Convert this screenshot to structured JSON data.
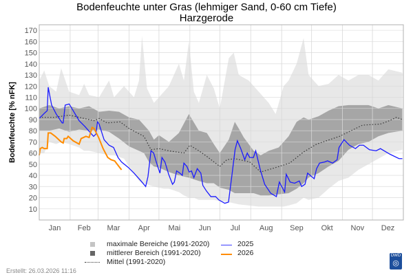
{
  "chart_data": {
    "type": "area",
    "title": "Bodenfeuchte unter Gras (lehmiger Sand, 0-60 cm Tiefe)",
    "subtitle": "Harzgerode",
    "ylabel": "Bodenfeuchte [% nFK]",
    "xlabel": "",
    "ylim": [
      0,
      175
    ],
    "xlim_days": [
      0,
      365
    ],
    "yticks": [
      10,
      20,
      30,
      40,
      50,
      60,
      70,
      80,
      90,
      100,
      110,
      120,
      130,
      140,
      150,
      160,
      170
    ],
    "months": [
      "Jan",
      "Feb",
      "Mar",
      "Apr",
      "Mai",
      "Jun",
      "Jul",
      "Aug",
      "Sep",
      "Okt",
      "Nov",
      "Dez"
    ],
    "month_start_days": [
      0,
      31,
      59,
      90,
      120,
      151,
      181,
      212,
      243,
      273,
      304,
      334
    ],
    "grid": true,
    "colors": {
      "max_band": "#e8e8e8",
      "mid_band": "#a6a6a6",
      "mean": "#333333",
      "y2025": "#1a1aff",
      "y2026": "#ff8c00"
    },
    "max_band": {
      "name": "maximale Bereiche (1991-2020)",
      "day": [
        0,
        5,
        10,
        17,
        22,
        30,
        40,
        45,
        50,
        60,
        70,
        75,
        85,
        90,
        95,
        100,
        103,
        108,
        115,
        125,
        130,
        140,
        145,
        150,
        155,
        160,
        168,
        175,
        181,
        190,
        195,
        200,
        210,
        220,
        230,
        237,
        245,
        250,
        258,
        265,
        270,
        280,
        290,
        300,
        310,
        320,
        330,
        340,
        350,
        364
      ],
      "low": [
        60,
        60,
        70,
        68,
        70,
        68,
        65,
        62,
        62,
        60,
        58,
        58,
        55,
        48,
        42,
        35,
        33,
        32,
        30,
        28,
        28,
        25,
        22,
        20,
        20,
        18,
        18,
        18,
        17,
        16,
        15,
        14,
        13,
        12,
        12,
        12,
        12,
        13,
        15,
        20,
        18,
        20,
        28,
        35,
        38,
        45,
        50,
        55,
        60,
        63
      ],
      "high": [
        125,
        134,
        120,
        115,
        136,
        115,
        112,
        122,
        112,
        110,
        125,
        110,
        120,
        115,
        110,
        125,
        165,
        118,
        105,
        115,
        120,
        140,
        125,
        160,
        115,
        105,
        130,
        118,
        100,
        145,
        150,
        130,
        125,
        115,
        105,
        95,
        120,
        125,
        140,
        163,
        130,
        120,
        122,
        130,
        125,
        130,
        130,
        125,
        135,
        132
      ]
    },
    "mid_band": {
      "name": "mittlerer Bereich (1991-2020)",
      "day": [
        0,
        10,
        20,
        30,
        40,
        50,
        60,
        70,
        80,
        90,
        100,
        105,
        110,
        115,
        120,
        130,
        140,
        150,
        160,
        168,
        175,
        181,
        190,
        196,
        200,
        205,
        215,
        222,
        230,
        240,
        250,
        258,
        265,
        270,
        280,
        290,
        300,
        310,
        320,
        330,
        340,
        350,
        364
      ],
      "low": [
        80,
        80,
        82,
        79,
        81,
        80,
        81,
        79,
        73,
        66,
        62,
        60,
        52,
        48,
        47,
        43,
        40,
        38,
        35,
        33,
        33,
        29,
        27,
        24,
        24,
        24,
        24,
        22,
        22,
        23,
        24,
        28,
        33,
        38,
        42,
        48,
        53,
        63,
        68,
        70,
        75,
        78,
        80
      ],
      "high": [
        100,
        103,
        100,
        102,
        100,
        102,
        97,
        98,
        97,
        92,
        90,
        85,
        80,
        72,
        76,
        70,
        78,
        95,
        80,
        78,
        68,
        60,
        72,
        88,
        82,
        74,
        62,
        58,
        62,
        65,
        75,
        88,
        92,
        90,
        93,
        98,
        102,
        103,
        103,
        103,
        100,
        103,
        100
      ]
    },
    "mean": {
      "name": "Mittel (1991-2020)",
      "day": [
        0,
        15,
        30,
        45,
        55,
        60,
        68,
        81,
        90,
        105,
        112,
        120,
        130,
        145,
        151,
        160,
        168,
        181,
        188,
        196,
        211,
        222,
        237,
        251,
        265,
        278,
        301,
        324,
        342,
        351,
        358,
        364
      ],
      "value": [
        92,
        92,
        94,
        91,
        89,
        91,
        87,
        88,
        82,
        75,
        63,
        64,
        62,
        60,
        67,
        62,
        57,
        48,
        54,
        55,
        52,
        43,
        47,
        51,
        61,
        68,
        75,
        85,
        86,
        89,
        92,
        90
      ]
    },
    "series": [
      {
        "name": "2025",
        "day": [
          0,
          5.5,
          8,
          9,
          12.4,
          17,
          23,
          24,
          26,
          30,
          34,
          40,
          45.6,
          51.5,
          54.5,
          56.8,
          58.4,
          60,
          65,
          70,
          74.5,
          79,
          82.5,
          89.4,
          95,
          102,
          106.7,
          109,
          112,
          114.7,
          118,
          121,
          123,
          126,
          129.7,
          133.6,
          135.4,
          137.7,
          141,
          143.4,
          145,
          148,
          150.3,
          152.6,
          155,
          158.4,
          162,
          164,
          167.6,
          172,
          176.8,
          180,
          186,
          189.7,
          193,
          196.3,
          198.6,
          202,
          206,
          208.5,
          211,
          214.7,
          217,
          221.6,
          226,
          232,
          237.7,
          240.7,
          246,
          247.6,
          251.5,
          256,
          260.7,
          263,
          266.4,
          269,
          275.6,
          278,
          281,
          286,
          289,
          294,
          298.6,
          300.5,
          305.5,
          311,
          317,
          321,
          325,
          331,
          337.7,
          342,
          351.5,
          360.7,
          364
        ],
        "value": [
          91,
          96,
          98,
          119,
          103,
          95,
          87,
          87,
          103,
          104,
          98,
          89,
          84,
          78,
          75,
          77,
          88,
          86,
          72,
          67,
          65,
          56,
          52,
          47,
          42,
          35,
          30,
          39,
          62,
          60,
          50,
          42,
          56,
          52,
          41,
          32,
          34,
          44,
          42,
          40,
          51,
          48,
          43,
          44,
          38,
          46,
          42,
          31,
          26,
          21,
          21,
          18,
          15,
          16,
          39,
          63,
          71,
          64,
          54,
          60,
          56,
          56,
          62,
          45,
          32,
          24,
          21,
          34,
          25,
          41,
          34,
          33,
          35,
          30,
          32,
          42,
          37,
          46,
          51,
          52,
          53,
          51,
          54,
          65,
          72,
          67,
          64,
          67,
          67,
          63,
          62,
          64,
          59,
          55,
          55
        ]
      },
      {
        "name": "2026",
        "day": [
          0,
          1,
          3,
          5,
          8,
          9,
          11.5,
          16,
          22,
          24,
          25,
          27.6,
          29,
          34,
          40,
          42,
          46.8,
          50,
          53,
          55,
          59.5,
          64,
          68.7,
          72,
          75.6,
          79,
          82.5
        ],
        "value": [
          58,
          64,
          65,
          64,
          64,
          78,
          78,
          75,
          70,
          69,
          73,
          73,
          75,
          71,
          68,
          73,
          75,
          74,
          83,
          82,
          74,
          64,
          56,
          54,
          53,
          49,
          45
        ]
      }
    ]
  },
  "legend": {
    "max_band": "maximale Bereiche (1991-2020)",
    "mid_band": "mittlerer Bereich (1991-2020)",
    "mean": "Mittel (1991-2020)",
    "y2025": "2025",
    "y2026": "2026"
  },
  "footer": {
    "created": "Erstellt:  26.03.2026 11:16"
  },
  "logo_text": "DWD"
}
